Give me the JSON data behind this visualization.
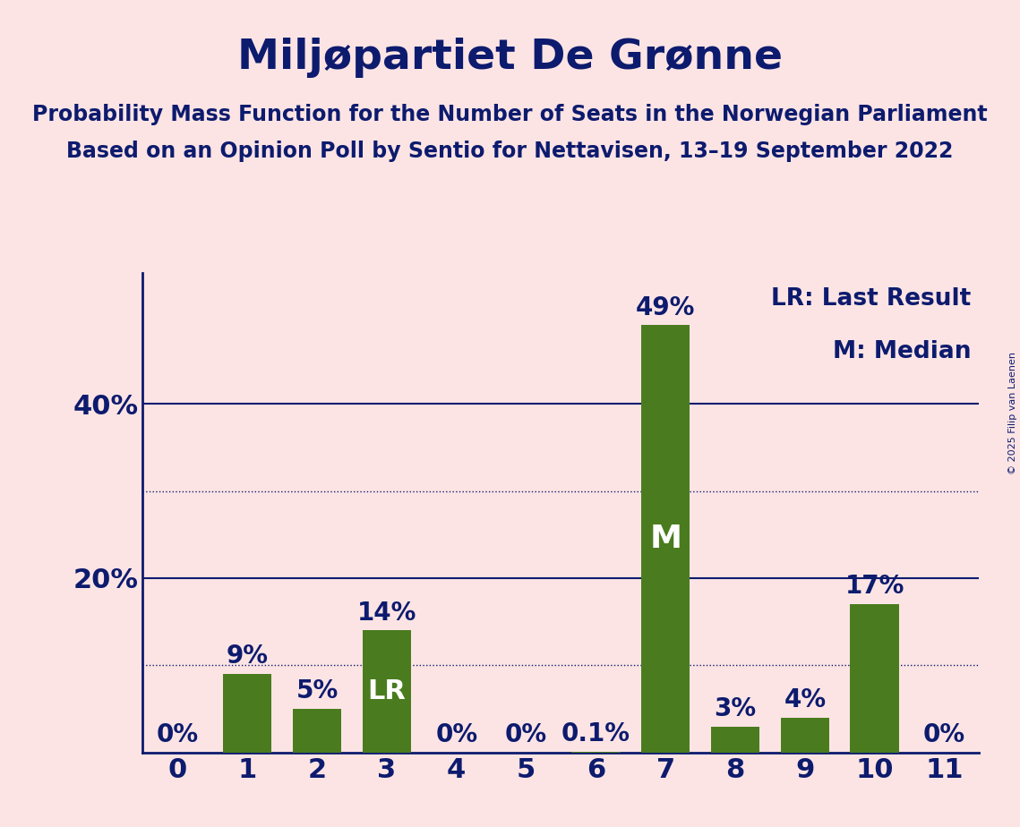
{
  "title": "Miljøpartiet De Grønne",
  "subtitle1": "Probability Mass Function for the Number of Seats in the Norwegian Parliament",
  "subtitle2": "Based on an Opinion Poll by Sentio for Nettavisen, 13–19 September 2022",
  "copyright": "© 2025 Filip van Laenen",
  "categories": [
    0,
    1,
    2,
    3,
    4,
    5,
    6,
    7,
    8,
    9,
    10,
    11
  ],
  "values": [
    0.0,
    9.0,
    5.0,
    14.0,
    0.0,
    0.0,
    0.1,
    49.0,
    3.0,
    4.0,
    17.0,
    0.0
  ],
  "bar_color": "#4a7c1f",
  "bg_color": "#fce4e4",
  "text_color": "#0d1b6e",
  "label_lr": 3,
  "label_m": 7,
  "ylim": [
    0,
    55
  ],
  "solid_yticks": [
    20,
    40
  ],
  "dotted_yticks": [
    10,
    30
  ],
  "value_labels": [
    "0%",
    "9%",
    "5%",
    "14%",
    "0%",
    "0%",
    "0.1%",
    "49%",
    "3%",
    "4%",
    "17%",
    "0%"
  ],
  "title_fontsize": 34,
  "subtitle_fontsize": 17,
  "tick_fontsize": 22,
  "label_fontsize": 20,
  "annot_fontsize_lr": 22,
  "annot_fontsize_m": 26,
  "legend_fontsize": 19,
  "copyright_fontsize": 8
}
